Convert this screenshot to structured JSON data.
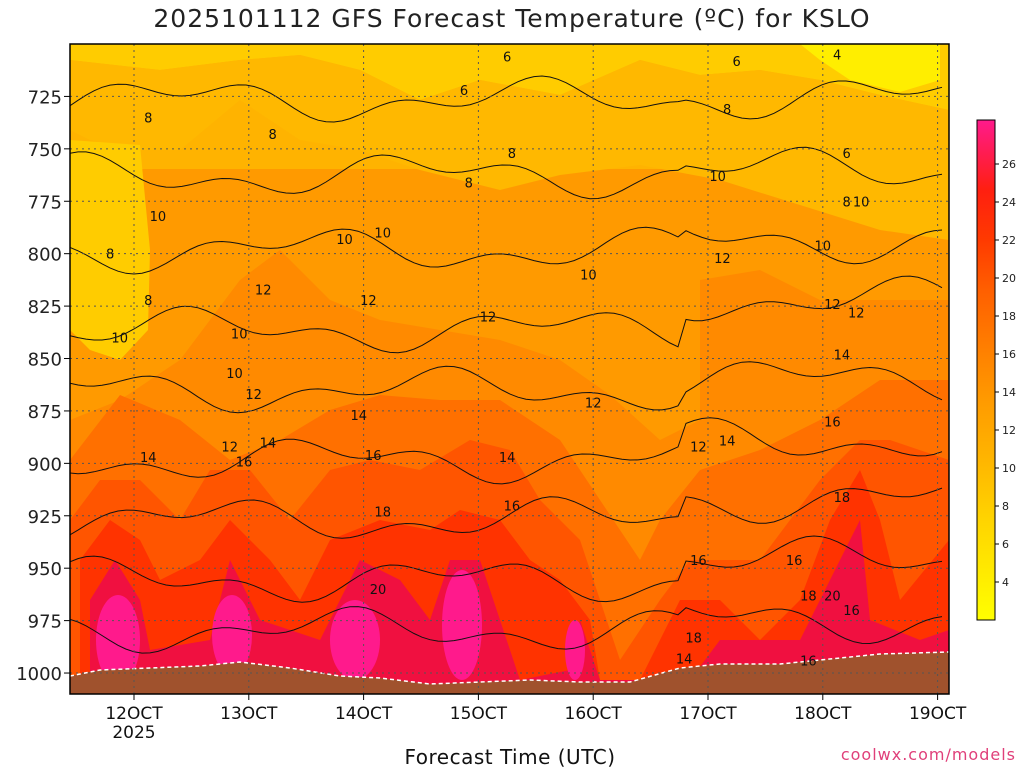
{
  "title": "2025101112 GFS Forecast Temperature (ºC) for KSLO",
  "credit": "coolwx.com/models",
  "chart_data": {
    "type": "heatmap",
    "title": "2025101112 GFS Forecast Temperature (ºC) for KSLO",
    "xlabel": "Forecast Time (UTC)",
    "ylabel": "",
    "x_ticks": [
      "12OCT",
      "13OCT",
      "14OCT",
      "15OCT",
      "16OCT",
      "17OCT",
      "18OCT",
      "19OCT"
    ],
    "x_subtick_label": "2025",
    "x_range": [
      "2025-10-11T12:00Z",
      "2025-10-19T00:00Z"
    ],
    "y_ticks": [
      725,
      750,
      775,
      800,
      825,
      850,
      875,
      900,
      925,
      950,
      975,
      1000
    ],
    "y_range": [
      700,
      1010
    ],
    "y_inverted": true,
    "grid": true,
    "colorbar": {
      "ticks": [
        4,
        6,
        8,
        10,
        12,
        14,
        16,
        18,
        20,
        22,
        24,
        26
      ],
      "colors": [
        "#ffff00",
        "#ffe600",
        "#ffcc00",
        "#ffb300",
        "#ff9900",
        "#ff8000",
        "#ff6600",
        "#ff4400",
        "#ff2200",
        "#ee1030",
        "#f0106a",
        "#ff1493",
        "#ff50b0"
      ]
    },
    "contour_labels": [
      {
        "x": "12OCT+3h",
        "p": 735,
        "t": "8"
      },
      {
        "x": "12OCT-5h",
        "p": 800,
        "t": "8"
      },
      {
        "x": "12OCT+3h",
        "p": 822,
        "t": "8"
      },
      {
        "x": "12OCT-3h",
        "p": 840,
        "t": "10"
      },
      {
        "x": "12OCT+5h",
        "p": 782,
        "t": "10"
      },
      {
        "x": "13OCT-2h",
        "p": 838,
        "t": "10"
      },
      {
        "x": "13OCT-3h",
        "p": 857,
        "t": "10"
      },
      {
        "x": "13OCT+5h",
        "p": 743,
        "t": "8"
      },
      {
        "x": "14OCT-4h",
        "p": 793,
        "t": "10"
      },
      {
        "x": "14OCT+4h",
        "p": 790,
        "t": "10"
      },
      {
        "x": "13OCT+3h",
        "p": 817,
        "t": "12"
      },
      {
        "x": "14OCT+1h",
        "p": 822,
        "t": "12"
      },
      {
        "x": "13OCT+1h",
        "p": 867,
        "t": "12"
      },
      {
        "x": "13OCT-4h",
        "p": 892,
        "t": "12"
      },
      {
        "x": "13OCT+4h",
        "p": 890,
        "t": "14"
      },
      {
        "x": "14OCT-1h",
        "p": 877,
        "t": "14"
      },
      {
        "x": "12OCT+3h",
        "p": 897,
        "t": "14"
      },
      {
        "x": "13OCT-1h",
        "p": 899,
        "t": "16"
      },
      {
        "x": "14OCT+2h",
        "p": 896,
        "t": "16"
      },
      {
        "x": "14OCT+4h",
        "p": 923,
        "t": "18"
      },
      {
        "x": "14OCT+3h",
        "p": 960,
        "t": "20"
      },
      {
        "x": "15OCT-3h",
        "p": 722,
        "t": "6"
      },
      {
        "x": "15OCT-2h",
        "p": 766,
        "t": "8"
      },
      {
        "x": "15OCT+2h",
        "p": 830,
        "t": "12"
      },
      {
        "x": "15OCT+6h",
        "p": 897,
        "t": "14"
      },
      {
        "x": "15OCT+7h",
        "p": 920,
        "t": "16"
      },
      {
        "x": "15OCT+6h",
        "p": 706,
        "t": "6"
      },
      {
        "x": "15OCT+7h",
        "p": 752,
        "t": "8"
      },
      {
        "x": "16OCT-1h",
        "p": 810,
        "t": "10"
      },
      {
        "x": "16OCT",
        "p": 871,
        "t": "12"
      },
      {
        "x": "17OCT-2h",
        "p": 892,
        "t": "12"
      },
      {
        "x": "17OCT-2h",
        "p": 946,
        "t": "16"
      },
      {
        "x": "17OCT-3h",
        "p": 983,
        "t": "18"
      },
      {
        "x": "17OCT-5h",
        "p": 993,
        "t": "14"
      },
      {
        "x": "17OCT+2h",
        "p": 763,
        "t": "10"
      },
      {
        "x": "17OCT+4h",
        "p": 731,
        "t": "8"
      },
      {
        "x": "17OCT+6h",
        "p": 708,
        "t": "6"
      },
      {
        "x": "17OCT+3h",
        "p": 802,
        "t": "12"
      },
      {
        "x": "17OCT+4h",
        "p": 889,
        "t": "14"
      },
      {
        "x": "18OCT-6h",
        "p": 946,
        "t": "16"
      },
      {
        "x": "18OCT-3h",
        "p": 994,
        "t": "16"
      },
      {
        "x": "18OCT-3h",
        "p": 963,
        "t": "18"
      },
      {
        "x": "18OCT",
        "p": 796,
        "t": "10"
      },
      {
        "x": "18OCT+2h",
        "p": 824,
        "t": "12"
      },
      {
        "x": "18OCT+4h",
        "p": 848,
        "t": "14"
      },
      {
        "x": "18OCT+2h",
        "p": 880,
        "t": "16"
      },
      {
        "x": "18OCT+4h",
        "p": 916,
        "t": "18"
      },
      {
        "x": "18OCT+2h",
        "p": 963,
        "t": "20"
      },
      {
        "x": "18OCT+3h",
        "p": 705,
        "t": "4"
      },
      {
        "x": "18OCT+5h",
        "p": 752,
        "t": "6"
      },
      {
        "x": "18OCT+5h",
        "p": 775,
        "t": "8"
      },
      {
        "x": "18OCT+8h",
        "p": 775,
        "t": "10"
      },
      {
        "x": "18OCT+7h",
        "p": 828,
        "t": "12"
      },
      {
        "x": "18OCT+6h",
        "p": 970,
        "t": "16"
      }
    ]
  }
}
